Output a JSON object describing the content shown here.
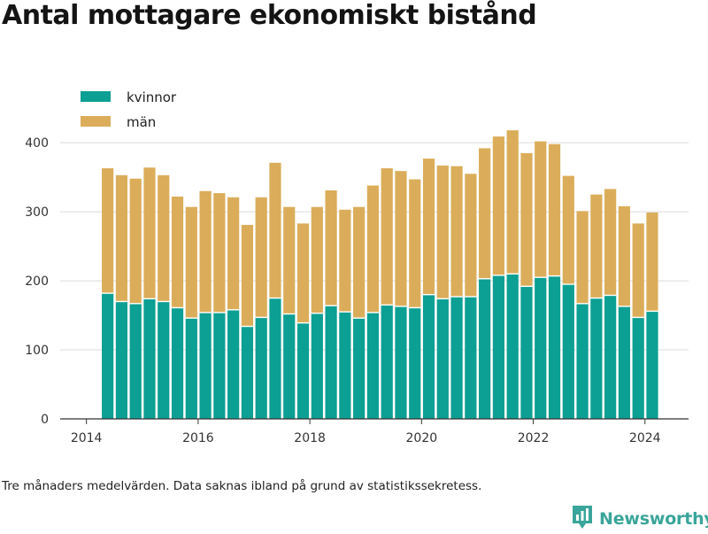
{
  "header": {
    "title": "Antal mottagare ekonomiskt bistånd"
  },
  "footnote": "Tre månaders medelvärden. Data saknas ibland på grund av statistikssekretess.",
  "brand": {
    "name": "Newsworthy",
    "icon": "newsworthy-logo-icon"
  },
  "colors": {
    "kvinnor": "#0c9f93",
    "man": "#dbad5a",
    "grid": "#dcdcdc",
    "axis": "#333333"
  },
  "chart_data": {
    "type": "bar",
    "stacked": true,
    "title": "Antal mottagare ekonomiskt bistånd",
    "xlabel": "",
    "ylabel": "",
    "x_range": [
      2013.53,
      2024.78
    ],
    "ylim": [
      0,
      440
    ],
    "x_ticks": [
      2014,
      2016,
      2018,
      2020,
      2022,
      2024
    ],
    "y_ticks": [
      0,
      100,
      200,
      300,
      400
    ],
    "grid": true,
    "legend": {
      "position": "top-left",
      "entries": [
        "kvinnor",
        "män"
      ]
    },
    "x": [
      2014.38,
      2014.63,
      2014.88,
      2015.13,
      2015.38,
      2015.63,
      2015.88,
      2016.13,
      2016.38,
      2016.63,
      2016.88,
      2017.13,
      2017.38,
      2017.63,
      2017.88,
      2018.13,
      2018.38,
      2018.63,
      2018.88,
      2019.13,
      2019.38,
      2019.63,
      2019.88,
      2020.13,
      2020.38,
      2020.63,
      2020.88,
      2021.13,
      2021.38,
      2021.63,
      2021.88,
      2022.13,
      2022.38,
      2022.63,
      2022.88,
      2023.13,
      2023.38,
      2023.63,
      2023.88,
      2024.13
    ],
    "series": [
      {
        "name": "kvinnor",
        "values": [
          182,
          170,
          167,
          174,
          170,
          161,
          146,
          154,
          154,
          158,
          134,
          147,
          175,
          152,
          139,
          153,
          164,
          155,
          146,
          154,
          165,
          163,
          161,
          180,
          174,
          177,
          177,
          203,
          208,
          210,
          192,
          205,
          207,
          195,
          167,
          175,
          179,
          163,
          147,
          156
        ]
      },
      {
        "name": "män",
        "values": [
          181,
          183,
          181,
          190,
          183,
          161,
          161,
          176,
          173,
          163,
          147,
          174,
          196,
          155,
          144,
          154,
          167,
          148,
          161,
          184,
          198,
          196,
          186,
          197,
          193,
          189,
          178,
          189,
          201,
          208,
          193,
          197,
          191,
          157,
          134,
          150,
          154,
          145,
          136,
          143
        ]
      }
    ]
  }
}
